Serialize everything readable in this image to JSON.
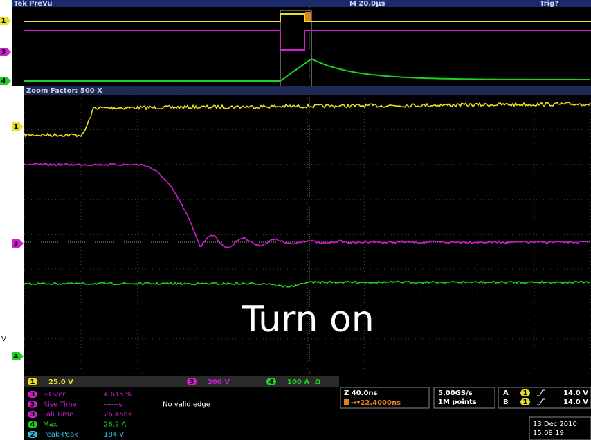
{
  "header": {
    "brand": "Tek",
    "mode": "PreVu",
    "timebase": "M 20.0µs",
    "trigger_status": "Trig?"
  },
  "overview_markers": [
    "1",
    "3",
    "4"
  ],
  "zoom": {
    "label": "Zoom Factor: 500 X"
  },
  "zoom_markers": [
    "1",
    "3",
    "4"
  ],
  "annotation": "Turn on",
  "side_text": "V",
  "channels": [
    {
      "num": "1",
      "scale": "25.0 V"
    },
    {
      "num": "3",
      "scale": "200 V"
    },
    {
      "num": "4",
      "scale": "100 A",
      "extra": "Ω"
    }
  ],
  "measurements": [
    {
      "source": "3",
      "name": "+Over",
      "value": "4.615 %"
    },
    {
      "source": "3",
      "name": "Rise Time",
      "value": "------s",
      "note": "No valid edge"
    },
    {
      "source": "3",
      "name": "Fall Time",
      "value": "26.45ns"
    },
    {
      "source": "4",
      "name": "Max",
      "value": "26.2 A"
    },
    {
      "source": "2",
      "name": "Peak-Peak",
      "value": "184 V"
    }
  ],
  "horizontal": {
    "zoom": "Z 40.0ns",
    "delay": "→▾22.4000ns"
  },
  "acquisition": {
    "rate": "5.00GS/s",
    "points": "1M points"
  },
  "triggers": [
    {
      "label": "A",
      "source": "1",
      "level": "14.0 V"
    },
    {
      "label": "B",
      "source": "1",
      "level": "14.0 V"
    }
  ],
  "date": "13 Dec 2010",
  "time": "15:08:19"
}
